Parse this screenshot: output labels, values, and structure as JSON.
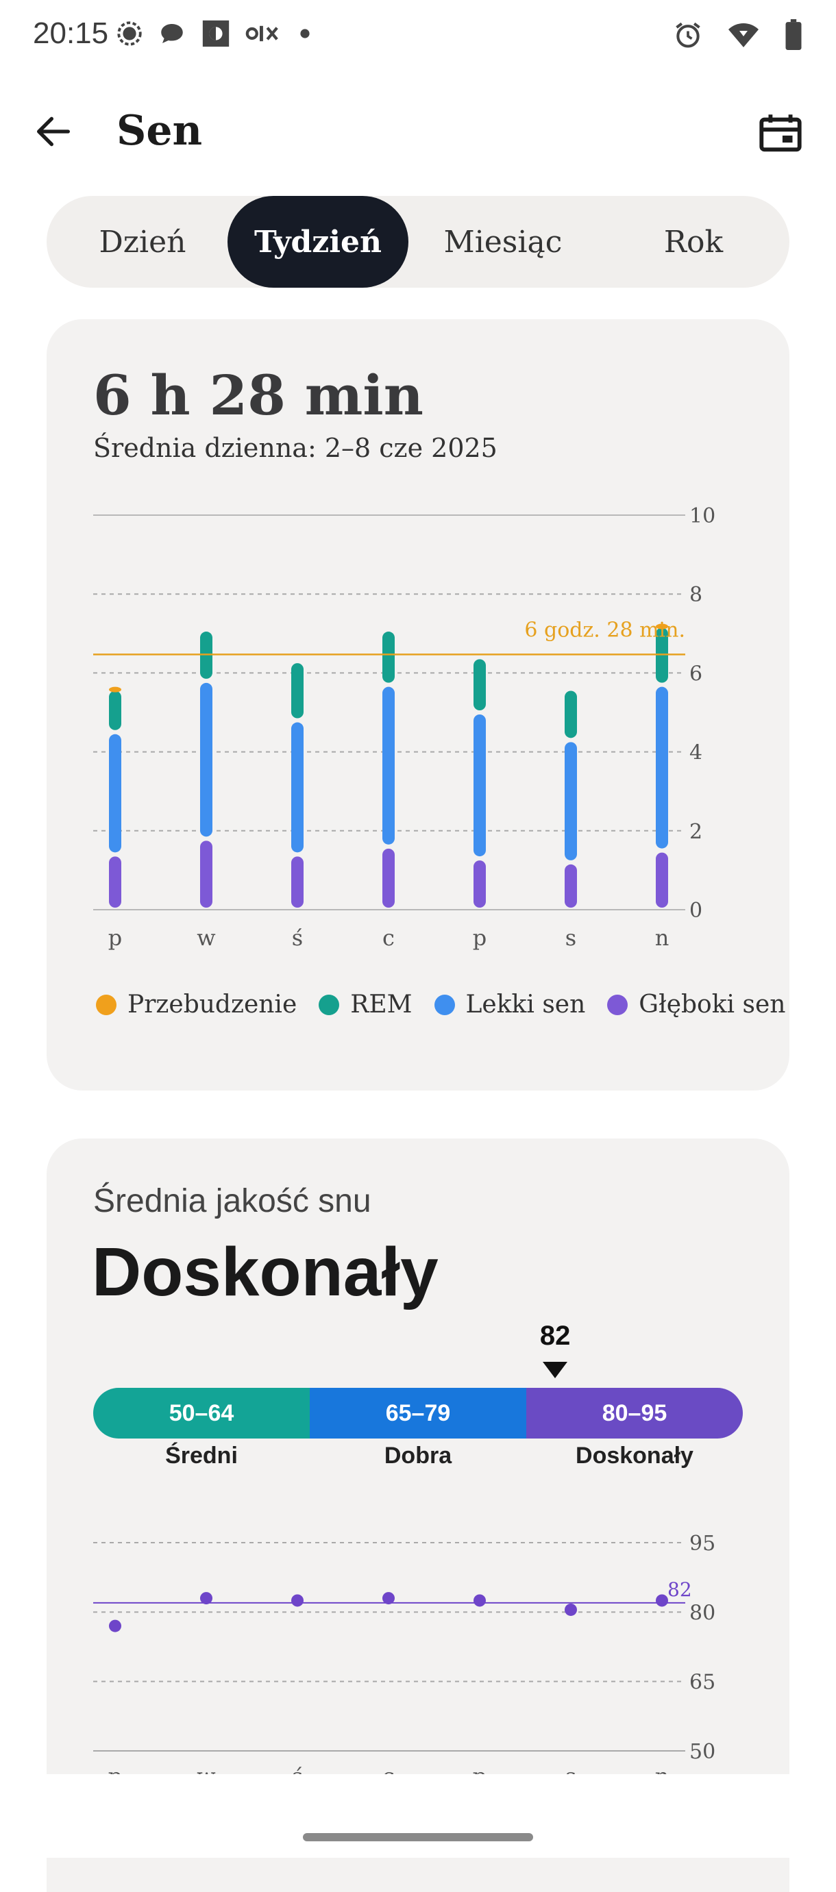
{
  "status_bar": {
    "time": "20:15",
    "left_icons": [
      "signal-messenger-icon",
      "chat-bubble-icon",
      "brightness-icon",
      "olx-icon",
      "dot-icon"
    ],
    "right_icons": [
      "alarm-icon",
      "wifi-icon",
      "battery-icon"
    ]
  },
  "header": {
    "title": "Sen"
  },
  "tabs": [
    {
      "label": "Dzień",
      "active": false
    },
    {
      "label": "Tydzień",
      "active": true
    },
    {
      "label": "Miesiąc",
      "active": false
    },
    {
      "label": "Rok",
      "active": false
    }
  ],
  "summary": {
    "value": "6 h 28 min",
    "subtitle": "Średnia dzienna: 2–8 cze 2025"
  },
  "chart_data": [
    {
      "type": "bar",
      "categories": [
        "p",
        "w",
        "ś",
        "c",
        "p",
        "s",
        "n"
      ],
      "series": [
        {
          "name": "Głęboki sen",
          "color": "#7d59d6",
          "values": [
            1.4,
            1.8,
            1.4,
            1.6,
            1.3,
            1.2,
            1.5
          ]
        },
        {
          "name": "Lekki sen",
          "color": "#3f8fef",
          "values": [
            3.1,
            4.0,
            3.4,
            4.1,
            3.7,
            3.1,
            4.2
          ]
        },
        {
          "name": "REM",
          "color": "#15a08e",
          "values": [
            1.1,
            1.3,
            1.5,
            1.4,
            1.4,
            1.3,
            1.5
          ]
        },
        {
          "name": "Przebudzenie",
          "color": "#f0a01c",
          "values": [
            0.1,
            0,
            0,
            0,
            0,
            0,
            0.1
          ]
        }
      ],
      "average_line": {
        "value": 6.47,
        "label": "6 godz. 28 min.",
        "color": "#e6a11f"
      },
      "ylim": [
        0,
        10
      ],
      "yticks": [
        0,
        2,
        4,
        6,
        8,
        10
      ],
      "grid": true
    },
    {
      "type": "scatter",
      "categories": [
        "p",
        "w",
        "ś",
        "c",
        "p",
        "s",
        "n"
      ],
      "series": [
        {
          "color": "#6e45c9",
          "values": [
            77,
            83,
            82.5,
            83,
            82.5,
            80.5,
            82.5
          ]
        }
      ],
      "average_line": {
        "value": 82,
        "label": "82",
        "color": "#6e45c9"
      },
      "ylim": [
        50,
        95
      ],
      "yticks": [
        50,
        65,
        80,
        95
      ],
      "grid": true
    }
  ],
  "legend": [
    {
      "label": "Przebudzenie",
      "color": "#f0a01c"
    },
    {
      "label": "REM",
      "color": "#15a08e"
    },
    {
      "label": "Lekki sen",
      "color": "#3f8fef"
    },
    {
      "label": "Głęboki sen",
      "color": "#7d59d6"
    }
  ],
  "quality": {
    "label": "Średnia jakość snu",
    "value": "Doskonały",
    "score": "82",
    "score_number": 82,
    "ranges": [
      {
        "range": "50–64",
        "name": "Średni",
        "color": "#13a496",
        "min": 50,
        "max": 64
      },
      {
        "range": "65–79",
        "name": "Dobra",
        "color": "#1877dc",
        "min": 65,
        "max": 79
      },
      {
        "range": "80–95",
        "name": "Doskonały",
        "color": "#6a4bc4",
        "min": 80,
        "max": 95
      }
    ]
  }
}
